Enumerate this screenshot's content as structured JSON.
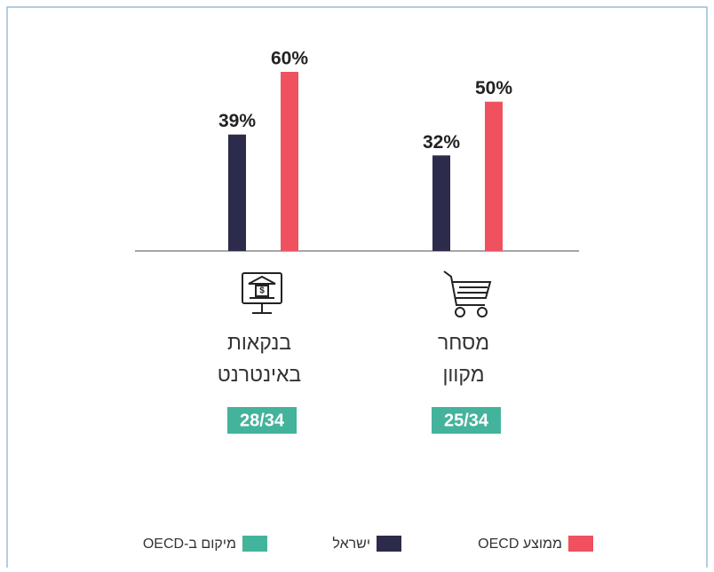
{
  "chart_data": {
    "type": "bar",
    "categories": [
      "בנקאות באינטרנט",
      "מסחר מקוון"
    ],
    "series": [
      {
        "name": "ישראל",
        "color": "#2c2b4b",
        "values": [
          39,
          32
        ],
        "value_labels": [
          "39%",
          "32%"
        ]
      },
      {
        "name": "ממוצע OECD",
        "color": "#ef515f",
        "values": [
          60,
          50
        ],
        "value_labels": [
          "60%",
          "50%"
        ]
      }
    ],
    "ranks": [
      "28/34",
      "25/34"
    ],
    "rank_legend": "מיקום ב-OECD",
    "rank_color": "#44b39b",
    "ylim": [
      0,
      60
    ]
  }
}
